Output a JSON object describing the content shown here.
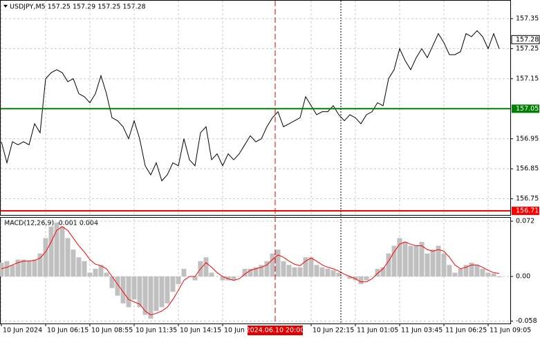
{
  "chart_data": [
    {
      "type": "line",
      "title": "USDJPY,M5  157.25 157.29 157.25 157.28",
      "color": "#000000",
      "values": [
        156.94,
        156.87,
        156.94,
        156.93,
        156.94,
        156.93,
        157.0,
        156.97,
        157.15,
        157.17,
        157.18,
        157.17,
        157.14,
        157.15,
        157.1,
        157.09,
        157.07,
        157.1,
        157.16,
        157.1,
        157.02,
        157.01,
        156.99,
        156.95,
        157.01,
        156.95,
        156.86,
        156.83,
        156.87,
        156.81,
        156.83,
        156.87,
        156.86,
        156.95,
        156.88,
        156.86,
        156.97,
        156.99,
        156.88,
        156.9,
        156.86,
        156.9,
        156.88,
        156.9,
        156.93,
        156.96,
        156.94,
        156.95,
        156.99,
        157.02,
        157.04,
        156.99,
        157.0,
        157.01,
        157.02,
        157.09,
        157.06,
        157.03,
        157.04,
        157.04,
        157.06,
        157.03,
        157.01,
        157.03,
        157.02,
        157.0,
        157.03,
        157.04,
        157.07,
        157.06,
        157.15,
        157.18,
        157.25,
        157.21,
        157.18,
        157.22,
        157.25,
        157.22,
        157.26,
        157.3,
        157.27,
        157.23,
        157.23,
        157.24,
        157.3,
        157.29,
        157.31,
        157.29,
        157.25,
        157.3,
        157.25
      ],
      "ylim": [
        156.694,
        157.412
      ],
      "yticks": [
        157.35,
        157.25,
        157.15,
        156.95,
        156.85,
        156.75
      ],
      "grid": true,
      "levels": [
        {
          "value": 157.05,
          "color": "#008000"
        },
        {
          "value": 156.71,
          "color": "#ff0000"
        }
      ],
      "last_price": 157.28
    },
    {
      "type": "bar",
      "title": "MACD(12,26,9) -0.001 0.004",
      "color": "#c0c0c0",
      "categories": [
        "10 Jun 2024",
        null,
        null,
        null,
        null,
        null,
        null,
        null,
        "10 Jun 06:15",
        null,
        null,
        null,
        null,
        null,
        null,
        null,
        "10 Jun 08:55",
        null,
        null,
        null,
        null,
        null,
        null,
        null,
        "10 Jun 11:35",
        null,
        null,
        null,
        null,
        null,
        null,
        null,
        "10 Jun 14:15",
        null,
        null,
        null,
        null,
        null,
        null,
        null,
        "10 Jun 1",
        null,
        null,
        null,
        null,
        null,
        null,
        null,
        null,
        null,
        null,
        null,
        null,
        null,
        null,
        null,
        "10 Jun 22:15",
        null,
        null,
        null,
        null,
        null,
        null,
        null,
        "11 Jun 01:05",
        null,
        null,
        null,
        null,
        null,
        null,
        null,
        "11 Jun 03:45",
        null,
        null,
        null,
        null,
        null,
        null,
        null,
        "11 Jun 06:25",
        null,
        null,
        null,
        null,
        null,
        null,
        null,
        "11 Jun 09:05",
        null,
        null
      ],
      "values": [
        0.018,
        0.02,
        0.015,
        0.022,
        0.022,
        0.02,
        0.022,
        0.03,
        0.05,
        0.065,
        0.07,
        0.065,
        0.05,
        0.035,
        0.025,
        0.02,
        0.005,
        0.01,
        0.015,
        0.005,
        -0.015,
        -0.025,
        -0.035,
        -0.04,
        -0.03,
        -0.04,
        -0.05,
        -0.055,
        -0.045,
        -0.04,
        -0.035,
        -0.02,
        -0.01,
        0.01,
        0.0,
        -0.005,
        0.02,
        0.025,
        0.005,
        0.0,
        -0.005,
        -0.005,
        -0.005,
        0.0,
        0.01,
        0.01,
        0.012,
        0.015,
        0.02,
        0.03,
        0.035,
        0.02,
        0.015,
        0.012,
        0.012,
        0.025,
        0.025,
        0.015,
        0.012,
        0.01,
        0.008,
        0.005,
        0.0,
        -0.003,
        -0.005,
        -0.01,
        -0.005,
        0.0,
        0.01,
        0.012,
        0.03,
        0.04,
        0.05,
        0.045,
        0.04,
        0.04,
        0.045,
        0.03,
        0.035,
        0.04,
        0.03,
        0.015,
        0.005,
        0.01,
        0.015,
        0.018,
        0.015,
        0.01,
        0.005,
        0.004,
        -0.001
      ],
      "signal": {
        "color": "#ff0000",
        "values": [
          0.01,
          0.012,
          0.015,
          0.018,
          0.02,
          0.02,
          0.021,
          0.024,
          0.032,
          0.045,
          0.06,
          0.065,
          0.06,
          0.05,
          0.04,
          0.032,
          0.022,
          0.016,
          0.014,
          0.01,
          0.0,
          -0.01,
          -0.02,
          -0.03,
          -0.033,
          -0.036,
          -0.045,
          -0.05,
          -0.048,
          -0.045,
          -0.04,
          -0.03,
          -0.018,
          -0.005,
          0.0,
          0.0,
          0.01,
          0.018,
          0.012,
          0.005,
          0.0,
          -0.003,
          -0.005,
          -0.003,
          0.003,
          0.008,
          0.01,
          0.012,
          0.015,
          0.022,
          0.028,
          0.025,
          0.02,
          0.016,
          0.014,
          0.02,
          0.024,
          0.02,
          0.015,
          0.012,
          0.01,
          0.007,
          0.003,
          0.0,
          -0.003,
          -0.007,
          -0.007,
          -0.003,
          0.004,
          0.01,
          0.02,
          0.032,
          0.042,
          0.045,
          0.042,
          0.04,
          0.04,
          0.035,
          0.033,
          0.035,
          0.033,
          0.025,
          0.015,
          0.01,
          0.012,
          0.015,
          0.015,
          0.012,
          0.008,
          0.005,
          0.004
        ]
      },
      "ylim": [
        -0.0612,
        0.0765
      ],
      "yticks": [
        0.072,
        {
          "value": 0,
          "label": "0.00"
        },
        -0.058
      ],
      "grid": true,
      "cursor_label": "2024.06.10 20:00"
    }
  ]
}
